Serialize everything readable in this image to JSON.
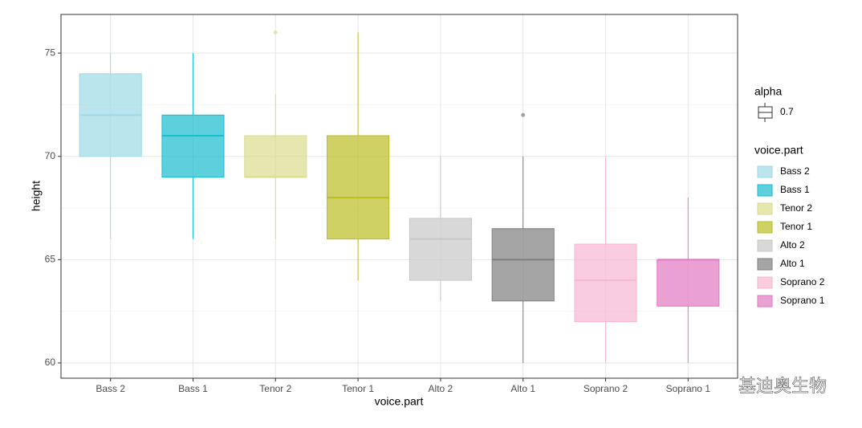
{
  "chart_data": {
    "type": "box",
    "x_label": "voice.part",
    "y_label": "height",
    "categories": [
      "Bass 2",
      "Bass 1",
      "Tenor 2",
      "Tenor 1",
      "Alto 2",
      "Alto 1",
      "Soprano 2",
      "Soprano 1"
    ],
    "boxes": [
      {
        "whisker_low": 66,
        "q1": 70,
        "median": 72,
        "q3": 74,
        "whisker_high": 75,
        "outliers": []
      },
      {
        "whisker_low": 66,
        "q1": 69,
        "median": 71,
        "q3": 72,
        "whisker_high": 75,
        "outliers": []
      },
      {
        "whisker_low": 66,
        "q1": 69,
        "median": 69,
        "q3": 71,
        "whisker_high": 73,
        "outliers": [
          76
        ]
      },
      {
        "whisker_low": 64,
        "q1": 66,
        "median": 68,
        "q3": 71,
        "whisker_high": 76,
        "outliers": []
      },
      {
        "whisker_low": 63,
        "q1": 64,
        "median": 66,
        "q3": 67,
        "whisker_high": 70,
        "outliers": []
      },
      {
        "whisker_low": 60,
        "q1": 63,
        "median": 65,
        "q3": 66.5,
        "whisker_high": 70,
        "outliers": [
          72
        ]
      },
      {
        "whisker_low": 60,
        "q1": 62,
        "median": 64,
        "q3": 65.75,
        "whisker_high": 70,
        "outliers": []
      },
      {
        "whisker_low": 60,
        "q1": 62.75,
        "median": 65,
        "q3": 65,
        "whisker_high": 68,
        "outliers": []
      }
    ],
    "series": [
      {
        "name": "Bass 2",
        "color": "#9edae5"
      },
      {
        "name": "Bass 1",
        "color": "#17becf"
      },
      {
        "name": "Tenor 2",
        "color": "#dbdb8d"
      },
      {
        "name": "Tenor 1",
        "color": "#bcbd22"
      },
      {
        "name": "Alto 2",
        "color": "#c7c7c7"
      },
      {
        "name": "Alto 1",
        "color": "#7f7f7f"
      },
      {
        "name": "Soprano 2",
        "color": "#f7b6d2"
      },
      {
        "name": "Soprano 1",
        "color": "#e377c2"
      }
    ],
    "legend_title": "voice.part",
    "alpha_legend_title": "alpha",
    "alpha": 0.7,
    "ylim": [
      59.26,
      76.87
    ],
    "yticks": [
      60,
      65,
      70,
      75
    ],
    "minor_yticks": [
      62.5,
      67.5,
      72.5
    ],
    "grid": true,
    "legend_position": "right",
    "watermark": "基迪奥生物"
  }
}
